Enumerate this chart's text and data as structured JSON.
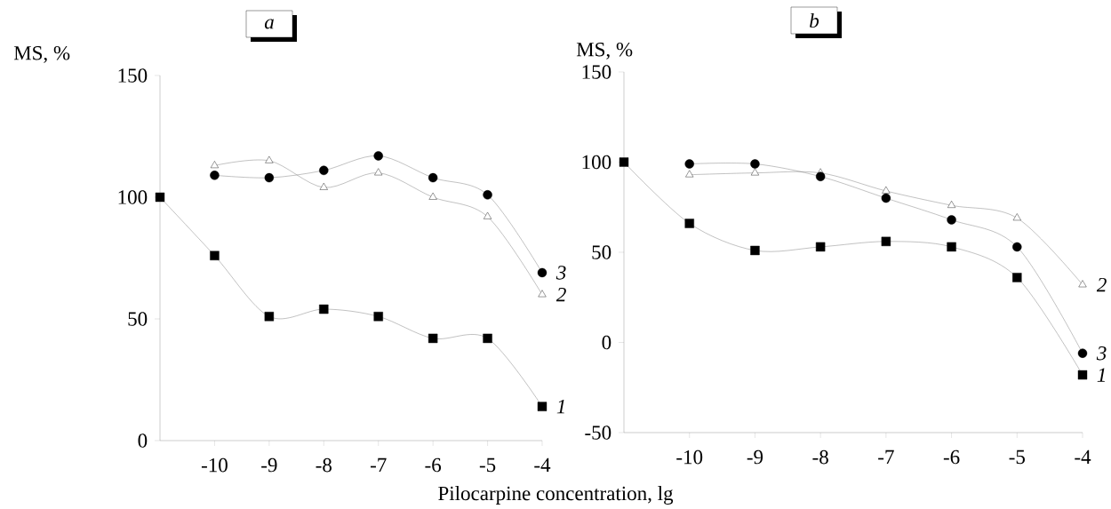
{
  "chart_data": [
    {
      "type": "line",
      "title": "a",
      "xlabel": "Pilocarpine concentration, lg",
      "ylabel": "MS, %",
      "x": [
        -11,
        -10,
        -9,
        -8,
        -7,
        -6,
        -5,
        -4
      ],
      "xlim": [
        -11,
        -4
      ],
      "xticks": [
        -10,
        -9,
        -8,
        -7,
        -6,
        -5,
        -4
      ],
      "ylim": [
        0,
        150
      ],
      "yticks": [
        0,
        50,
        100,
        150
      ],
      "series": [
        {
          "name": "1",
          "color": "#000000",
          "marker": "square",
          "values": [
            100,
            76,
            51,
            54,
            51,
            42,
            42,
            14
          ]
        },
        {
          "name": "2",
          "color": "#000000",
          "marker": "triangle",
          "values": [
            null,
            113,
            115,
            104,
            110,
            100,
            92,
            60
          ]
        },
        {
          "name": "3",
          "color": "#000000",
          "marker": "circle",
          "values": [
            null,
            109,
            108,
            111,
            117,
            108,
            101,
            69
          ]
        }
      ]
    },
    {
      "type": "line",
      "title": "b",
      "ylabel": "MS, %",
      "x": [
        -11,
        -10,
        -9,
        -8,
        -7,
        -6,
        -5,
        -4
      ],
      "xlim": [
        -11,
        -4
      ],
      "xticks": [
        -10,
        -9,
        -8,
        -7,
        -6,
        -5,
        -4
      ],
      "ylim": [
        -50,
        150
      ],
      "yticks": [
        -50,
        0,
        50,
        100,
        150
      ],
      "series": [
        {
          "name": "2",
          "color": "#000000",
          "marker": "triangle",
          "values": [
            null,
            93,
            94,
            94,
            84,
            76,
            69,
            32
          ]
        },
        {
          "name": "3",
          "color": "#000000",
          "marker": "circle",
          "values": [
            null,
            99,
            99,
            92,
            80,
            68,
            53,
            -6
          ]
        },
        {
          "name": "1",
          "color": "#000000",
          "marker": "square",
          "values": [
            100,
            66,
            51,
            53,
            56,
            53,
            36,
            -18
          ]
        }
      ]
    }
  ]
}
